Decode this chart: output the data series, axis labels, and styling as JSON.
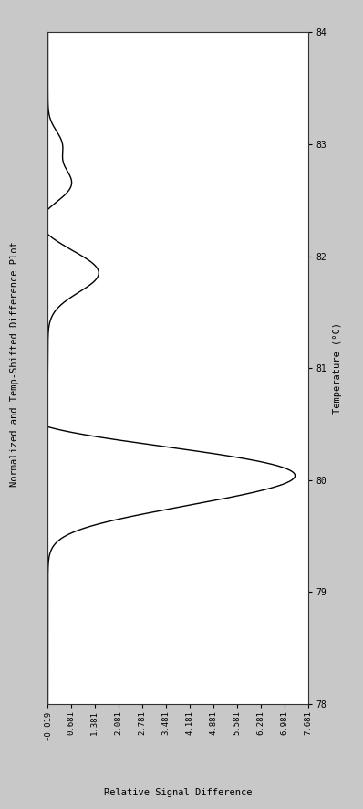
{
  "title": "Normalized and Temp-Shifted Difference Plot",
  "temp_label": "Temperature (°C)",
  "signal_label": "Relative Signal Difference",
  "temp_lim": [
    78,
    84
  ],
  "signal_lim": [
    -0.019,
    7.681
  ],
  "temp_ticks": [
    78,
    79,
    80,
    81,
    82,
    83,
    84
  ],
  "signal_ticks": [
    -0.019,
    0.681,
    1.381,
    2.081,
    2.781,
    3.481,
    4.181,
    4.881,
    5.581,
    6.281,
    6.981,
    7.681
  ],
  "signal_tick_labels": [
    "-0.019",
    "0.681",
    "1.381",
    "2.081",
    "2.781",
    "3.481",
    "4.181",
    "4.881",
    "5.581",
    "6.281",
    "6.981",
    "7.681"
  ],
  "bg_color": "#c8c8c8",
  "plot_bg_color": "#ffffff",
  "line_color": "#000000",
  "line_width": 1.0
}
